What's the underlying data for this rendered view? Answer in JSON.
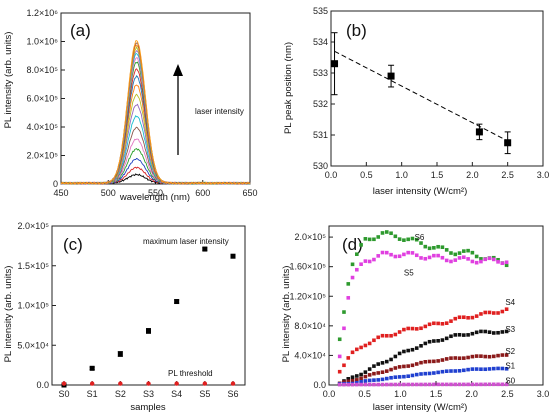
{
  "chart_data": [
    {
      "id": "a",
      "type": "line",
      "panel_label": "(a)",
      "xlabel": "wavelength (nm)",
      "ylabel": "PL intensity (arb. units)",
      "xlim": [
        450,
        650
      ],
      "ylim": [
        0,
        1200000
      ],
      "xticks": [
        450,
        500,
        550,
        600,
        650
      ],
      "yticks": [
        0,
        200000,
        400000,
        600000,
        800000,
        1000000,
        1200000
      ],
      "ytick_labels": [
        "0",
        "2.0×10⁵",
        "4.0×10⁵",
        "6.0×10⁵",
        "8.0×10⁵",
        "1.0×10⁶",
        "1.2×10⁶"
      ],
      "peak_center_nm": 530,
      "peak_fwhm_nm": 22,
      "peak_heights": [
        60000,
        110000,
        170000,
        240000,
        310000,
        390000,
        470000,
        550000,
        620000,
        690000,
        750000,
        800000,
        850000,
        880000,
        910000,
        930000,
        950000,
        970000,
        985000,
        1000000
      ],
      "series_colors": [
        "#000000",
        "#d62728",
        "#1f3fbf",
        "#2ca02c",
        "#e377c2",
        "#8c564b",
        "#17becf",
        "#9467bd",
        "#bcbd22",
        "#ff7f0e",
        "#1f77b4",
        "#d62728",
        "#2ca02c",
        "#e377c2",
        "#17becf",
        "#9467bd",
        "#bcbd22",
        "#ff7f0e",
        "#8c564b",
        "#ff9f1a"
      ],
      "annotation": "laser intensity"
    },
    {
      "id": "b",
      "type": "scatter",
      "panel_label": "(b)",
      "xlabel": "laser intensity (W/cm²)",
      "ylabel": "PL peak position (nm)",
      "xlim": [
        0,
        3.0
      ],
      "ylim": [
        530,
        535
      ],
      "xticks": [
        0.0,
        0.5,
        1.0,
        1.5,
        2.0,
        2.5,
        3.0
      ],
      "xtick_labels": [
        "0.0",
        "0.5",
        "1.0",
        "1.5",
        "2.0",
        "2.5",
        "3.0"
      ],
      "yticks": [
        530,
        531,
        532,
        533,
        534,
        535
      ],
      "x": [
        0.05,
        0.85,
        2.1,
        2.5
      ],
      "y": [
        533.3,
        532.9,
        531.1,
        530.75
      ],
      "yerr": [
        1.0,
        0.35,
        0.25,
        0.35
      ],
      "fit_line": {
        "x": [
          0.05,
          2.55
        ],
        "y": [
          533.7,
          530.75
        ]
      }
    },
    {
      "id": "c",
      "type": "scatter",
      "panel_label": "(c)",
      "xlabel": "samples",
      "ylabel": "PL intensity (arb. units)",
      "categories": [
        "S0",
        "S1",
        "S2",
        "S3",
        "S4",
        "S5",
        "S6"
      ],
      "ylim": [
        0,
        200000
      ],
      "yticks": [
        0,
        50000,
        100000,
        150000,
        200000
      ],
      "ytick_labels": [
        "0.0",
        "5.0×10⁴",
        "1.0×10⁵",
        "1.5×10⁵",
        "2.0×10⁵"
      ],
      "series": [
        {
          "name": "maximum laser intensity",
          "color": "#000000",
          "values": [
            0,
            21000,
            39000,
            68000,
            105000,
            171000,
            162000
          ],
          "errors": [
            0,
            1500,
            3000,
            3000,
            2000,
            1500,
            2000
          ]
        },
        {
          "name": "PL threshold",
          "color": "#e02020",
          "values": [
            500,
            500,
            500,
            500,
            500,
            500,
            500
          ]
        }
      ]
    },
    {
      "id": "d",
      "type": "scatter",
      "panel_label": "(d)",
      "xlabel": "laser intensity (W/cm²)",
      "ylabel": "PL intensity (arb. units)",
      "xlim": [
        0,
        3.0
      ],
      "ylim": [
        0,
        215000
      ],
      "xticks": [
        0.0,
        0.5,
        1.0,
        1.5,
        2.0,
        2.5,
        3.0
      ],
      "xtick_labels": [
        "0.0",
        "0.5",
        "1.0",
        "1.5",
        "2.0",
        "2.5",
        "3.0"
      ],
      "yticks": [
        0,
        40000,
        80000,
        120000,
        160000,
        200000
      ],
      "ytick_labels": [
        "0.0",
        "4.0×10⁴",
        "8.0×10⁴",
        "1.20×10⁵",
        "1.60×10⁵",
        "2.0×10⁵"
      ],
      "series": [
        {
          "name": "S6",
          "color": "#2e9a2e",
          "x": [
            0.15,
            0.3,
            0.5,
            0.75,
            1.0,
            1.25,
            1.5,
            1.75,
            2.0,
            2.25,
            2.5
          ],
          "values": [
            60000,
            160000,
            195000,
            205000,
            200000,
            193000,
            185000,
            180000,
            178000,
            170000,
            165000
          ]
        },
        {
          "name": "S5",
          "color": "#e040e0",
          "x": [
            0.15,
            0.3,
            0.5,
            0.75,
            1.0,
            1.25,
            1.5,
            1.75,
            2.0,
            2.25,
            2.5
          ],
          "values": [
            40000,
            140000,
            168000,
            176000,
            177000,
            175000,
            172000,
            170000,
            169000,
            168000,
            168000
          ]
        },
        {
          "name": "S4",
          "color": "#e02020",
          "x": [
            0.15,
            0.3,
            0.5,
            0.75,
            1.0,
            1.25,
            1.5,
            1.75,
            2.0,
            2.25,
            2.5
          ],
          "values": [
            20000,
            40000,
            55000,
            65000,
            72000,
            78000,
            82000,
            88000,
            93000,
            97000,
            102000
          ]
        },
        {
          "name": "S3",
          "color": "#111111",
          "x": [
            0.15,
            0.3,
            0.5,
            0.75,
            1.0,
            1.25,
            1.5,
            1.75,
            2.0,
            2.25,
            2.5
          ],
          "values": [
            3000,
            8000,
            18000,
            30000,
            42000,
            52000,
            60000,
            66000,
            70000,
            72000,
            71000
          ]
        },
        {
          "name": "S2",
          "color": "#8b1a1a",
          "x": [
            0.15,
            0.3,
            0.5,
            0.75,
            1.0,
            1.25,
            1.5,
            1.75,
            2.0,
            2.25,
            2.5
          ],
          "values": [
            2000,
            5000,
            11000,
            18000,
            24000,
            29000,
            33000,
            36000,
            38000,
            39000,
            40000
          ]
        },
        {
          "name": "S1",
          "color": "#2040d0",
          "x": [
            0.15,
            0.3,
            0.5,
            0.75,
            1.0,
            1.25,
            1.5,
            1.75,
            2.0,
            2.25,
            2.5
          ],
          "values": [
            1000,
            2000,
            5000,
            8000,
            11000,
            14000,
            17000,
            19000,
            21000,
            22000,
            22000
          ]
        },
        {
          "name": "S0",
          "color": "#d050d0",
          "x": [
            0.15,
            0.3,
            0.5,
            0.75,
            1.0,
            1.25,
            1.5,
            1.75,
            2.0,
            2.25,
            2.5
          ],
          "values": [
            500,
            500,
            600,
            600,
            700,
            700,
            800,
            800,
            800,
            900,
            900
          ]
        }
      ]
    }
  ]
}
